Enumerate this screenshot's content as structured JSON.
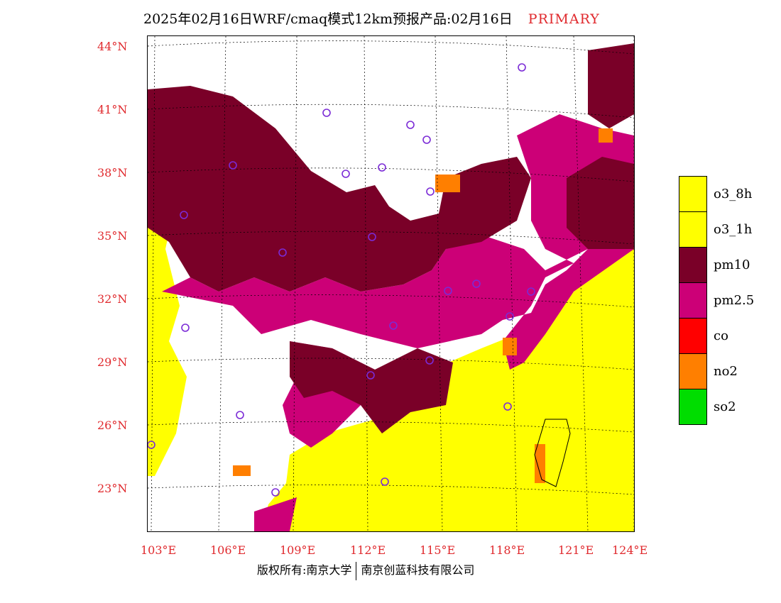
{
  "title": {
    "main": "2025年02月16日WRF/cmaq模式12km预报产品:02月16日",
    "primary": "PRIMARY"
  },
  "latitude_labels": [
    "44°N",
    "41°N",
    "38°N",
    "35°N",
    "32°N",
    "29°N",
    "26°N",
    "23°N"
  ],
  "longitude_labels": [
    "103°E",
    "106°E",
    "109°E",
    "112°E",
    "115°E",
    "118°E",
    "121°E",
    "124°E"
  ],
  "legend": [
    {
      "label": "o3_8h",
      "color": "#ffff00"
    },
    {
      "label": "o3_1h",
      "color": "#ffff00"
    },
    {
      "label": "pm10",
      "color": "#7a0028"
    },
    {
      "label": "pm2.5",
      "color": "#cc0077"
    },
    {
      "label": "co",
      "color": "#ff0000"
    },
    {
      "label": "no2",
      "color": "#ff7f00"
    },
    {
      "label": "so2",
      "color": "#00dd00"
    }
  ],
  "copyright": {
    "left": "版权所有:南京大学",
    "right": "南京创蓝科技有限公司"
  },
  "colors": {
    "accent_red": "#e0292d",
    "pm10": "#7a0028",
    "pm25": "#cc0077",
    "o3": "#ffff00",
    "no2": "#ff7f00",
    "station_marker": "#7b2bd6"
  }
}
